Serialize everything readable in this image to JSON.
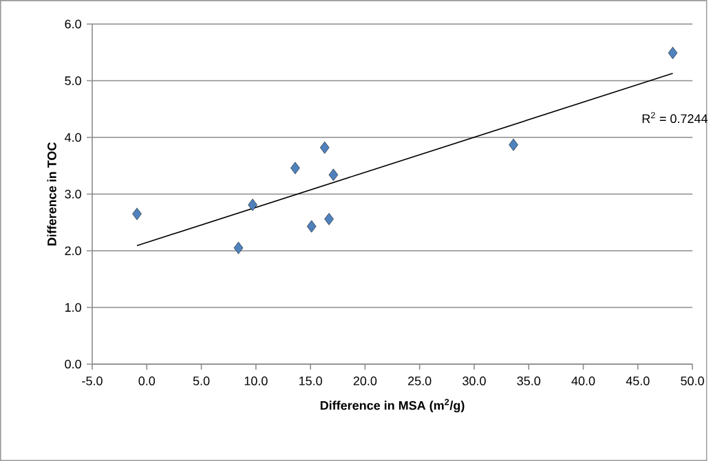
{
  "chart_data": {
    "type": "scatter",
    "xlabel": "Difference in MSA (m$^{2}$/g)",
    "ylabel": "Difference in TOC",
    "xlim": [
      -5,
      50
    ],
    "ylim": [
      0,
      6
    ],
    "xticks": [
      {
        "value": -5,
        "label": "-5.0"
      },
      {
        "value": 0,
        "label": "0.0"
      },
      {
        "value": 5,
        "label": "5.0"
      },
      {
        "value": 10,
        "label": "10.0"
      },
      {
        "value": 15,
        "label": "15.0"
      },
      {
        "value": 20,
        "label": "20.0"
      },
      {
        "value": 25,
        "label": "25.0"
      },
      {
        "value": 30,
        "label": "30.0"
      },
      {
        "value": 35,
        "label": "35.0"
      },
      {
        "value": 40,
        "label": "40.0"
      },
      {
        "value": 45,
        "label": "45.0"
      },
      {
        "value": 50,
        "label": "50.0"
      }
    ],
    "yticks": [
      {
        "value": 0,
        "label": "0.0"
      },
      {
        "value": 1,
        "label": "1.0"
      },
      {
        "value": 2,
        "label": "2.0"
      },
      {
        "value": 3,
        "label": "3.0"
      },
      {
        "value": 4,
        "label": "4.0"
      },
      {
        "value": 5,
        "label": "5.0"
      },
      {
        "value": 6,
        "label": "6.0"
      }
    ],
    "grid": "y",
    "annotations": [
      "R$^{2}$ = 0.7244"
    ],
    "series": [
      {
        "marker": "diamond",
        "color": "#4f81bd",
        "x": [
          -0.9,
          8.4,
          9.7,
          13.6,
          16.3,
          17.1,
          15.1,
          16.7,
          33.6,
          48.2
        ],
        "values": [
          2.65,
          2.05,
          2.81,
          3.46,
          3.82,
          3.34,
          2.43,
          2.56,
          3.87,
          5.49
        ]
      },
      {
        "type": "line",
        "color": "#000000",
        "x": [
          -0.9,
          48.2
        ],
        "values": [
          2.09,
          5.13
        ]
      }
    ]
  }
}
